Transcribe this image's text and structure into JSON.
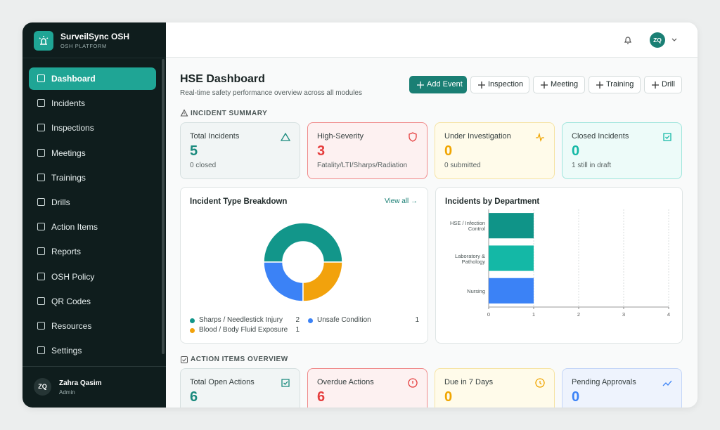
{
  "app": {
    "name": "SurveilSync OSH",
    "subtitle": "OSH PLATFORM"
  },
  "nav": [
    "Dashboard",
    "Incidents",
    "Inspections",
    "Meetings",
    "Trainings",
    "Drills",
    "Action Items",
    "Reports",
    "OSH Policy",
    "QR Codes",
    "Resources",
    "Settings"
  ],
  "user": {
    "initials": "ZQ",
    "name": "Zahra Qasim",
    "role": "Admin"
  },
  "header": {
    "initials": "ZQ"
  },
  "page": {
    "title": "HSE Dashboard",
    "subtitle": "Real-time safety performance overview across all modules"
  },
  "actions": [
    "Add Event",
    "Inspection",
    "Meeting",
    "Training",
    "Drill"
  ],
  "incident_summary": {
    "heading": "INCIDENT SUMMARY",
    "cards": [
      {
        "label": "Total Incidents",
        "value": 5,
        "note": "0 closed"
      },
      {
        "label": "High-Severity",
        "value": 3,
        "note": "Fatality/LTI/Sharps/Radiation"
      },
      {
        "label": "Under Investigation",
        "value": 0,
        "note": "0 submitted"
      },
      {
        "label": "Closed Incidents",
        "value": 0,
        "note": "1 still in draft"
      }
    ]
  },
  "chart_data": [
    {
      "type": "pie",
      "title": "Incident Type Breakdown",
      "link": "View all →",
      "categories": [
        "Sharps / Needlestick Injury",
        "Unsafe Condition",
        "Blood / Body Fluid Exposure"
      ],
      "values": [
        2,
        1,
        1
      ],
      "colors": [
        "#12968a",
        "#3b82f6",
        "#f2a20c"
      ],
      "donut": true
    },
    {
      "type": "bar",
      "orientation": "horizontal",
      "title": "Incidents by Department",
      "categories": [
        "HSE / Infection Control",
        "Laboratory & Pathology",
        "Nursing"
      ],
      "values": [
        1,
        1,
        1
      ],
      "colors": [
        "#0f9488",
        "#14b8a6",
        "#3b82f6"
      ],
      "xlim": [
        0,
        4
      ],
      "xticks": [
        0,
        1,
        2,
        3,
        4
      ],
      "grid": true
    }
  ],
  "action_items": {
    "heading": "ACTION ITEMS OVERVIEW",
    "cards": [
      {
        "label": "Total Open Actions",
        "value": 6
      },
      {
        "label": "Overdue Actions",
        "value": 6
      },
      {
        "label": "Due in 7 Days",
        "value": 0
      },
      {
        "label": "Pending Approvals",
        "value": 0
      }
    ]
  }
}
